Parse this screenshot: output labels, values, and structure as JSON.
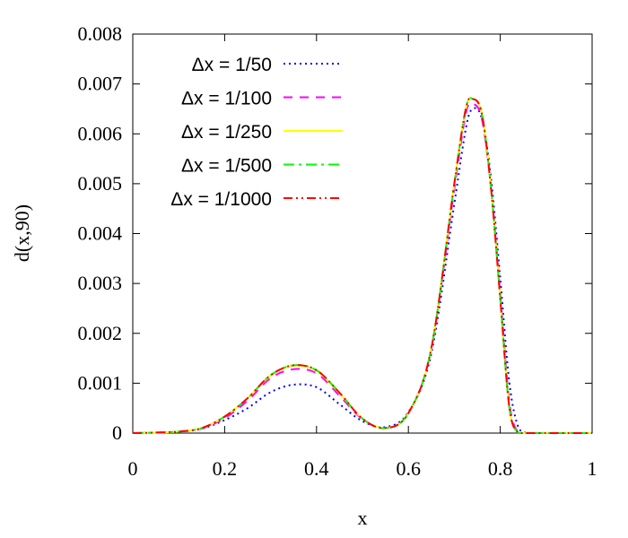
{
  "chart_data": {
    "type": "line",
    "xlabel": "x",
    "ylabel": "d(x,90)",
    "xlim": [
      0,
      1
    ],
    "ylim": [
      0,
      0.008
    ],
    "xticks": [
      0,
      0.2,
      0.4,
      0.6,
      0.8,
      1
    ],
    "xtick_labels": [
      "0",
      "0.2",
      "0.4",
      "0.6",
      "0.8",
      "1"
    ],
    "yticks": [
      0,
      0.001,
      0.002,
      0.003,
      0.004,
      0.005,
      0.006,
      0.007,
      0.008
    ],
    "ytick_labels": [
      "0",
      "0.001",
      "0.002",
      "0.003",
      "0.004",
      "0.005",
      "0.006",
      "0.007",
      "0.008"
    ],
    "grid": false,
    "legend_position": "top-left",
    "x": [
      0,
      0.05,
      0.1,
      0.15,
      0.2,
      0.25,
      0.3,
      0.35,
      0.4,
      0.45,
      0.5,
      0.55,
      0.6,
      0.65,
      0.7,
      0.725,
      0.74,
      0.76,
      0.78,
      0.8,
      0.82,
      0.84,
      0.86,
      0.9,
      0.95,
      1
    ],
    "series": [
      {
        "name": "Δx = 1/50",
        "color": "#0000ff",
        "dash": "2,4",
        "values": [
          0,
          1e-05,
          3e-05,
          9e-05,
          0.00026,
          0.0005,
          0.00082,
          0.00097,
          0.00092,
          0.00058,
          0.00024,
          0.00012,
          0.00042,
          0.0016,
          0.0046,
          0.0061,
          0.0065,
          0.0063,
          0.0051,
          0.0031,
          0.001,
          0.0001,
          0,
          0,
          0,
          0
        ]
      },
      {
        "name": "Δx = 1/100",
        "color": "#ff00ff",
        "dash": "10,8",
        "values": [
          0,
          1e-05,
          3e-05,
          9e-05,
          0.0003,
          0.00065,
          0.0011,
          0.00128,
          0.0012,
          0.00075,
          0.00028,
          0.0001,
          0.0004,
          0.0017,
          0.0049,
          0.0064,
          0.0066,
          0.0063,
          0.0049,
          0.0028,
          0.0006,
          0,
          0,
          0,
          0,
          0
        ]
      },
      {
        "name": "Δx = 1/250",
        "color": "#ffff00",
        "dash": "",
        "values": [
          0,
          1e-05,
          3e-05,
          0.0001,
          0.00033,
          0.0007,
          0.00115,
          0.00135,
          0.00125,
          0.0008,
          0.00029,
          0.0001,
          0.0004,
          0.0017,
          0.005,
          0.0065,
          0.0067,
          0.0064,
          0.0049,
          0.0027,
          0.0005,
          0,
          0,
          0,
          0,
          0
        ]
      },
      {
        "name": "Δx = 1/500",
        "color": "#00ff00",
        "dash": "12,5,3,5",
        "values": [
          0,
          1e-05,
          3e-05,
          0.0001,
          0.00033,
          0.0007,
          0.00116,
          0.00136,
          0.00126,
          0.00081,
          0.00029,
          0.0001,
          0.0004,
          0.0017,
          0.005,
          0.0065,
          0.0067,
          0.0064,
          0.0049,
          0.0027,
          0.0005,
          0,
          0,
          0,
          0,
          0
        ]
      },
      {
        "name": "Δx = 1/1000",
        "color": "#ff0000",
        "dash": "10,4,2,4,2,4",
        "values": [
          0,
          1e-05,
          3e-05,
          0.0001,
          0.00033,
          0.0007,
          0.00116,
          0.00136,
          0.00126,
          0.00081,
          0.00029,
          0.0001,
          0.0004,
          0.0017,
          0.005,
          0.0065,
          0.0067,
          0.0064,
          0.0049,
          0.0027,
          0.0005,
          0,
          0,
          0,
          0,
          0
        ]
      }
    ]
  }
}
